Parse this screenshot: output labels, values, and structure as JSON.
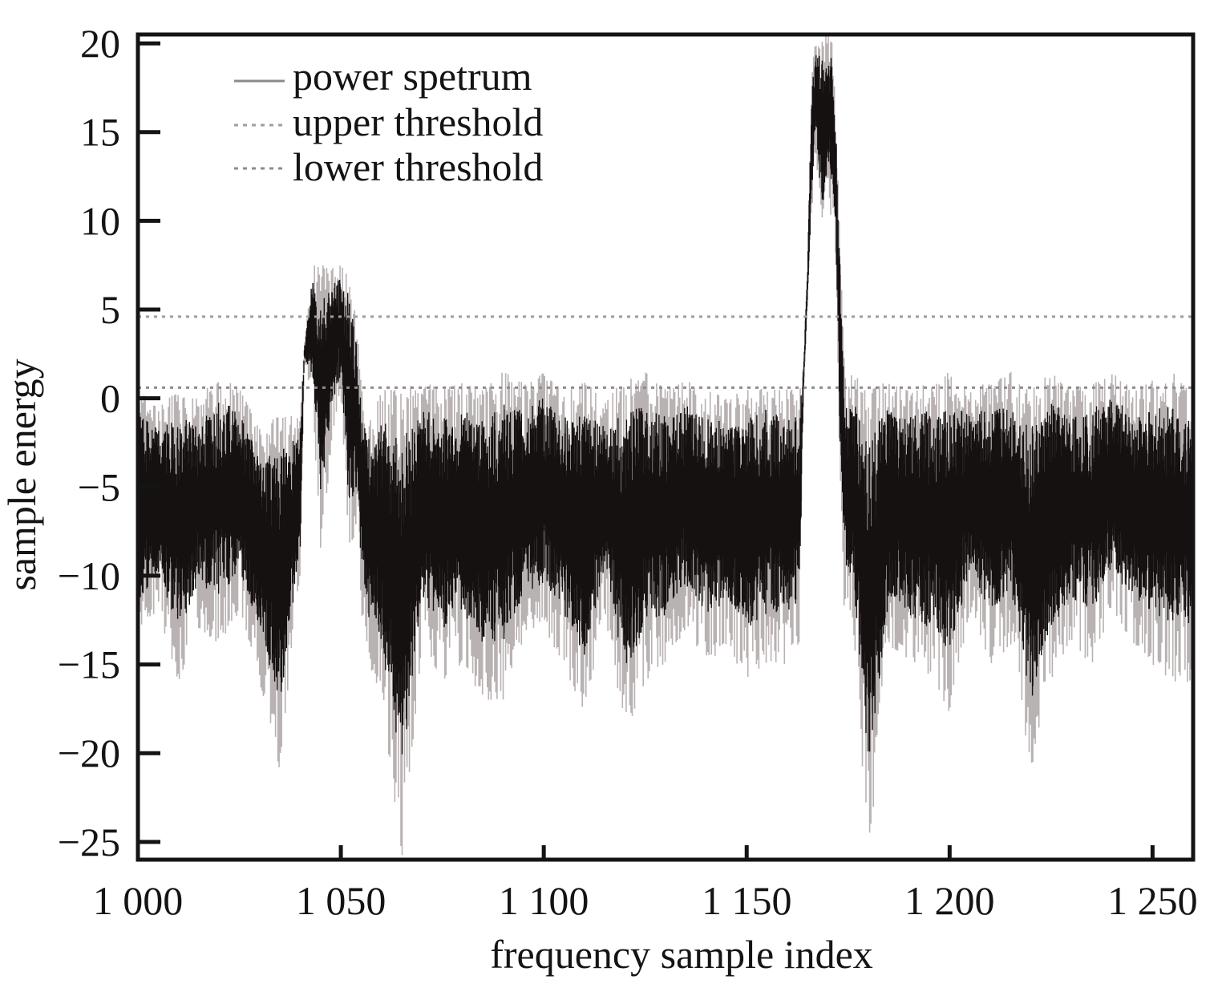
{
  "chart_data": {
    "type": "line",
    "title": "",
    "xlabel": "frequency sample index",
    "ylabel": "sample energy",
    "xlim": [
      1000,
      1260
    ],
    "ylim": [
      -26,
      20.5
    ],
    "xticks": [
      1000,
      1050,
      1100,
      1150,
      1200,
      1250
    ],
    "xtick_labels": [
      "1 000",
      "1 050",
      "1 100",
      "1 150",
      "1 200",
      "1 250"
    ],
    "yticks": [
      20,
      15,
      10,
      5,
      0,
      -5,
      -10,
      -15,
      -20,
      -25
    ],
    "ytick_labels": [
      "20",
      "15",
      "10",
      "5",
      "0",
      "−5",
      "−10",
      "−15",
      "−20",
      "−25"
    ],
    "grid": false,
    "legend_position": "top-left",
    "series": [
      {
        "name": "power spetrum",
        "style": "solid",
        "color": "#111111",
        "envelope": {
          "x": [
            1000,
            1005,
            1010,
            1015,
            1020,
            1025,
            1030,
            1035,
            1040,
            1041,
            1043,
            1045,
            1048,
            1050,
            1052,
            1054,
            1055,
            1057,
            1060,
            1065,
            1070,
            1075,
            1080,
            1085,
            1090,
            1095,
            1100,
            1105,
            1110,
            1115,
            1120,
            1125,
            1130,
            1135,
            1140,
            1145,
            1150,
            1155,
            1160,
            1163,
            1164,
            1165,
            1166,
            1167,
            1168,
            1169,
            1170,
            1171,
            1172,
            1173,
            1174,
            1175,
            1176,
            1180,
            1185,
            1190,
            1195,
            1200,
            1205,
            1210,
            1215,
            1220,
            1225,
            1230,
            1235,
            1240,
            1245,
            1250,
            1255,
            1260
          ],
          "max": [
            0.5,
            -0.5,
            0.5,
            0,
            1.5,
            0.5,
            -1.5,
            -1,
            -1,
            3,
            7.5,
            7.5,
            7.5,
            7.5,
            7.5,
            4,
            1,
            -1,
            0.5,
            0.5,
            1,
            0.5,
            1,
            0.5,
            1.5,
            1,
            1.5,
            0.5,
            1,
            0,
            1,
            1.5,
            0.5,
            1,
            0.5,
            0,
            0.5,
            1,
            0.5,
            0.5,
            2,
            8,
            18,
            20.5,
            20.5,
            20.5,
            20.5,
            20.5,
            16,
            9,
            3,
            0.5,
            1.5,
            0.5,
            1,
            0.5,
            1,
            1.5,
            0.5,
            1,
            1.5,
            0.5,
            1.5,
            0.5,
            1,
            1.5,
            0.5,
            1,
            1.5,
            0.5
          ],
          "min": [
            -14,
            -12,
            -16,
            -13,
            -14,
            -12,
            -16,
            -21,
            -10,
            2,
            0,
            -9,
            -2,
            0,
            -9,
            -7,
            -12,
            -15,
            -17,
            -26,
            -14,
            -16,
            -15,
            -17,
            -17,
            -14,
            -13,
            -15,
            -18,
            -12,
            -19,
            -16,
            -15,
            -13,
            -15,
            -14,
            -16,
            -15,
            -15,
            -14,
            0,
            5,
            10,
            14,
            10,
            8,
            11,
            10,
            7,
            -5,
            -12,
            -13,
            -12,
            -26,
            -14,
            -15,
            -16,
            -18,
            -12,
            -15,
            -14,
            -21,
            -16,
            -14,
            -15,
            -12,
            -14,
            -15,
            -16,
            -16
          ]
        }
      },
      {
        "name": "upper threshold",
        "style": "dotted",
        "color": "#9e9e9e",
        "value": 4.6
      },
      {
        "name": "lower threshold",
        "style": "dotted",
        "color": "#8c8c8c",
        "value": 0.6
      }
    ]
  }
}
